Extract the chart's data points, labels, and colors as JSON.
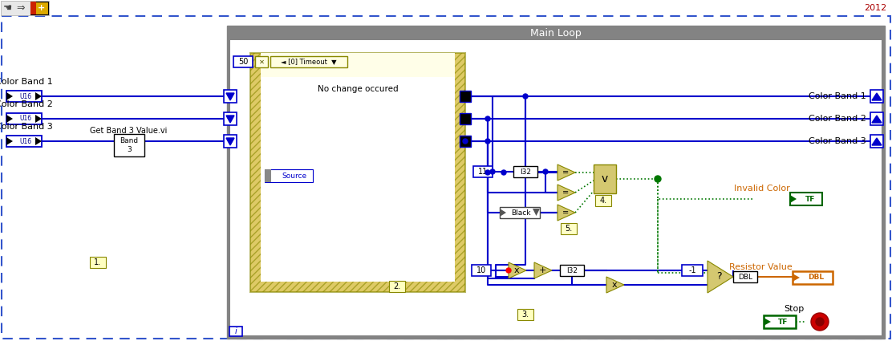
{
  "bg_color": "#ffffff",
  "toolbar_bg": "#f0f0f0",
  "year_text": "2012",
  "main_loop_label": "Main Loop",
  "event_timeout_text": "[0] Timeout",
  "event_no_change_text": "No change occured",
  "event_source_text": "Source",
  "dashed_border_color": "#3355cc",
  "wire_color": "#0000cc",
  "green_wire_color": "#007700",
  "orange_wire_color": "#cc6600",
  "label_color_band1": "Color Band 1",
  "label_color_band2": "Color Band 2",
  "label_color_band3": "Color Band 3",
  "label_invalid_color": "Invalid Color",
  "label_resistor_value": "Resistor Value",
  "label_stop": "Stop",
  "node_color": "#d4c870",
  "num_50": "50",
  "num_11": "11",
  "num_10": "10",
  "num_neg1": "-1",
  "num_1": "1.",
  "num_2": "2.",
  "num_3": "3.",
  "num_4": "4.",
  "num_5": "5.",
  "band3_vi_label": "Get Band 3 Value.vi",
  "band3_box_text": "Band\n3",
  "black_label": "Black",
  "i32_label": "I32",
  "dbl_label": "DBL",
  "gray_header": "#838383"
}
